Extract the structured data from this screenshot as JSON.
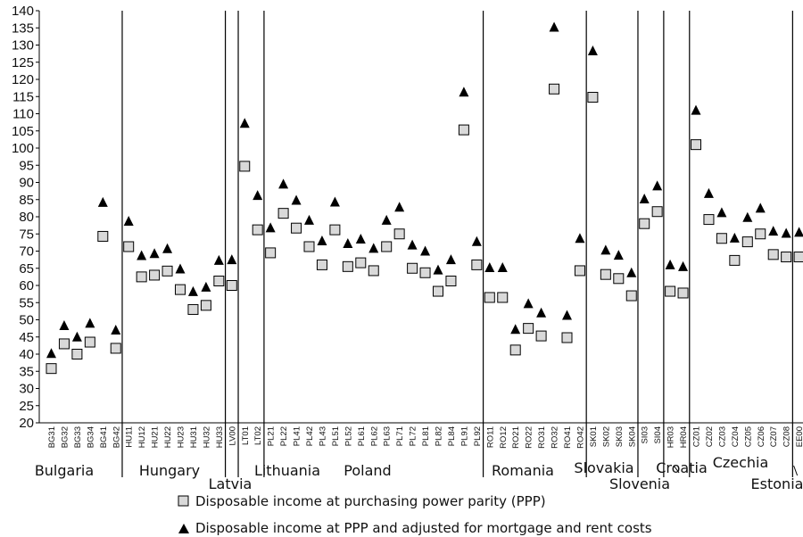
{
  "chart_data": {
    "type": "scatter",
    "title": "",
    "xlabel": "",
    "ylabel": "",
    "ylim": [
      20,
      140
    ],
    "y_ticks": [
      20,
      25,
      30,
      35,
      40,
      45,
      50,
      55,
      60,
      65,
      70,
      75,
      80,
      85,
      90,
      95,
      100,
      105,
      110,
      115,
      120,
      125,
      130,
      135,
      140
    ],
    "grid": false,
    "legend_position": "bottom",
    "categories": [
      "BG31",
      "BG32",
      "BG33",
      "BG34",
      "BG41",
      "BG42",
      "HU11",
      "HU12",
      "HU21",
      "HU22",
      "HU23",
      "HU31",
      "HU32",
      "HU33",
      "LV00",
      "LT01",
      "LT02",
      "PL21",
      "PL22",
      "PL41",
      "PL42",
      "PL43",
      "PL51",
      "PL52",
      "PL61",
      "PL62",
      "PL63",
      "PL71",
      "PL72",
      "PL81",
      "PL82",
      "PL84",
      "PL91",
      "PL92",
      "RO11",
      "RO12",
      "RO21",
      "RO22",
      "RO31",
      "RO32",
      "RO41",
      "RO42",
      "SK01",
      "SK02",
      "SK03",
      "SK04",
      "SI03",
      "SI04",
      "HR03",
      "HR04",
      "CZ01",
      "CZ02",
      "CZ03",
      "CZ04",
      "CZ05",
      "CZ06",
      "CZ07",
      "CZ08",
      "EE00"
    ],
    "series": [
      {
        "name": "Disposable income at purchasing power parity (PPP)",
        "marker": "square",
        "color": "#d9d9d9",
        "values": [
          35.8,
          43,
          40,
          43.5,
          74.3,
          41.7,
          71.3,
          62.5,
          63,
          64.2,
          58.8,
          53,
          54.2,
          61.3,
          60,
          94.7,
          76.2,
          69.5,
          81,
          76.7,
          71.3,
          66,
          76.2,
          65.5,
          66.6,
          64.3,
          71.3,
          75,
          65,
          63.7,
          58.3,
          61.3,
          105.3,
          66,
          56.5,
          56.5,
          41.2,
          47.5,
          45.3,
          117.2,
          44.8,
          64.3,
          114.8,
          63.2,
          62,
          57,
          78,
          81.5,
          58.3,
          57.8,
          101,
          79.2,
          73.7,
          67.3,
          72.7,
          75,
          69,
          68.3,
          68.3
        ]
      },
      {
        "name": "Disposable income at PPP and adjusted for mortgage and rent costs",
        "marker": "triangle",
        "color": "#000000",
        "values": [
          40.2,
          48.3,
          45,
          49,
          84.2,
          47,
          78.7,
          68.7,
          69.3,
          70.7,
          64.8,
          58.2,
          59.5,
          67.3,
          67.5,
          107.2,
          86.2,
          76.8,
          89.5,
          84.8,
          79,
          73,
          84.3,
          72.2,
          73.5,
          70.8,
          79,
          82.8,
          71.8,
          70,
          64.5,
          67.5,
          116.3,
          72.8,
          65.2,
          65.2,
          47.2,
          54.7,
          52,
          135.2,
          51.3,
          73.7,
          128.3,
          70.3,
          68.8,
          63.7,
          85.2,
          89,
          66,
          65.5,
          111,
          86.8,
          81.2,
          73.8,
          79.8,
          82.5,
          75.8,
          75.2,
          75.5
        ]
      }
    ],
    "groups": [
      {
        "name": "Bulgaria",
        "from": 0,
        "to": 5
      },
      {
        "name": "Hungary",
        "from": 6,
        "to": 13
      },
      {
        "name": "Latvia",
        "from": 14,
        "to": 14
      },
      {
        "name": "Lithuania",
        "from": 15,
        "to": 16
      },
      {
        "name": "Poland",
        "from": 17,
        "to": 33
      },
      {
        "name": "Romania",
        "from": 34,
        "to": 41
      },
      {
        "name": "Slovakia",
        "from": 42,
        "to": 45
      },
      {
        "name": "Slovenia",
        "from": 46,
        "to": 47
      },
      {
        "name": "Croatia",
        "from": 48,
        "to": 49
      },
      {
        "name": "Czechia",
        "from": 50,
        "to": 57
      },
      {
        "name": "Estonia",
        "from": 58,
        "to": 58
      }
    ]
  }
}
